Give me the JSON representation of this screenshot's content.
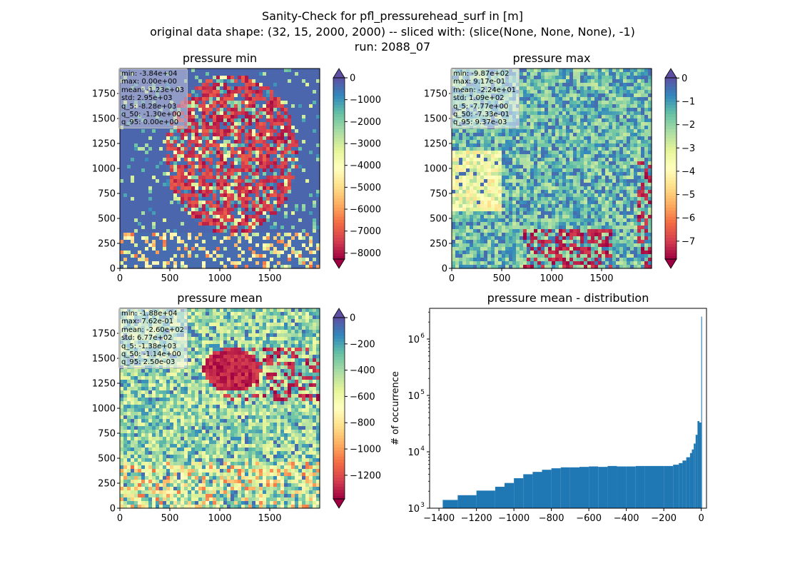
{
  "figure": {
    "title_lines": [
      "Sanity-Check for pfl_pressurehead_surf in [m]",
      "original data shape: (32, 15, 2000, 2000) -- sliced with: (slice(None, None, None), -1)",
      "run: 2088_07"
    ]
  },
  "panels": [
    {
      "title": "pressure min",
      "stats": [
        "min: -3.84e+04",
        "max: 0.00e+00",
        "mean: -1.23e+03",
        "std: 2.95e+03",
        "q_5: -8.28e+03",
        "q_50: -1.30e+00",
        "q_95: 0.00e+00"
      ],
      "colorbar": {
        "ticks": [
          0,
          -1000,
          -2000,
          -3000,
          -4000,
          -5000,
          -6000,
          -7000,
          -8000
        ],
        "range": [
          -8280,
          0
        ],
        "extend": "both"
      }
    },
    {
      "title": "pressure max",
      "stats": [
        "min: -9.87e+02",
        "max: 9.17e-01",
        "mean: -2.24e+01",
        "std: 1.09e+02",
        "q_5: -7.77e+00",
        "q_50: -7.33e-01",
        "q_95: 9.37e-03"
      ],
      "colorbar": {
        "ticks": [
          0,
          -1,
          -2,
          -3,
          -4,
          -5,
          -6,
          -7
        ],
        "range": [
          -7.77,
          0.0094
        ],
        "extend": "both"
      }
    },
    {
      "title": "pressure mean",
      "stats": [
        "min: -1.88e+04",
        "max: 7.62e-01",
        "mean: -2.60e+02",
        "std: 6.77e+02",
        "q_5: -1.38e+03",
        "q_50: -1.14e+00",
        "q_95: 2.50e-03"
      ],
      "colorbar": {
        "ticks": [
          0,
          -200,
          -400,
          -600,
          -800,
          -1000,
          -1200
        ],
        "range": [
          -1380,
          0.0025
        ],
        "extend": "both"
      }
    }
  ],
  "map_axes": {
    "x_ticks": [
      0,
      500,
      1000,
      1500
    ],
    "y_ticks": [
      0,
      250,
      500,
      750,
      1000,
      1250,
      1500,
      1750
    ],
    "extent": [
      0,
      2000
    ]
  },
  "colormap": "Spectral",
  "chart_data": {
    "type": "bar",
    "title": "pressure mean - distribution",
    "xlabel": "",
    "ylabel": "# of occurrence",
    "yscale": "log",
    "ylim": [
      1000,
      3500000
    ],
    "xlim": [
      -1450,
      28
    ],
    "x_ticks": [
      -1400,
      -1200,
      -1000,
      -800,
      -600,
      -400,
      -200,
      0
    ],
    "y_ticks": [
      {
        "value": 1000,
        "label": "10",
        "exp": "3"
      },
      {
        "value": 10000,
        "label": "10",
        "exp": "4"
      },
      {
        "value": 100000,
        "label": "10",
        "exp": "5"
      },
      {
        "value": 1000000,
        "label": "10",
        "exp": "6"
      }
    ],
    "bar_color": "#1f77b4",
    "bin_width": 10,
    "bins": [
      [
        -1380,
        1400
      ],
      [
        -1300,
        1700
      ],
      [
        -1200,
        2050
      ],
      [
        -1100,
        2400
      ],
      [
        -1050,
        2800
      ],
      [
        -1000,
        3400
      ],
      [
        -950,
        4000
      ],
      [
        -900,
        4400
      ],
      [
        -850,
        4800
      ],
      [
        -800,
        5100
      ],
      [
        -750,
        5300
      ],
      [
        -700,
        5300
      ],
      [
        -650,
        5400
      ],
      [
        -600,
        5500
      ],
      [
        -550,
        5400
      ],
      [
        -500,
        5600
      ],
      [
        -450,
        5500
      ],
      [
        -400,
        5500
      ],
      [
        -350,
        5600
      ],
      [
        -300,
        5600
      ],
      [
        -250,
        5600
      ],
      [
        -200,
        5600
      ],
      [
        -150,
        5900
      ],
      [
        -120,
        6300
      ],
      [
        -100,
        7000
      ],
      [
        -80,
        8000
      ],
      [
        -60,
        9500
      ],
      [
        -50,
        11000
      ],
      [
        -40,
        14000
      ],
      [
        -30,
        20000
      ],
      [
        -20,
        35000
      ],
      [
        -10,
        33000
      ],
      [
        0,
        2500000
      ]
    ]
  }
}
